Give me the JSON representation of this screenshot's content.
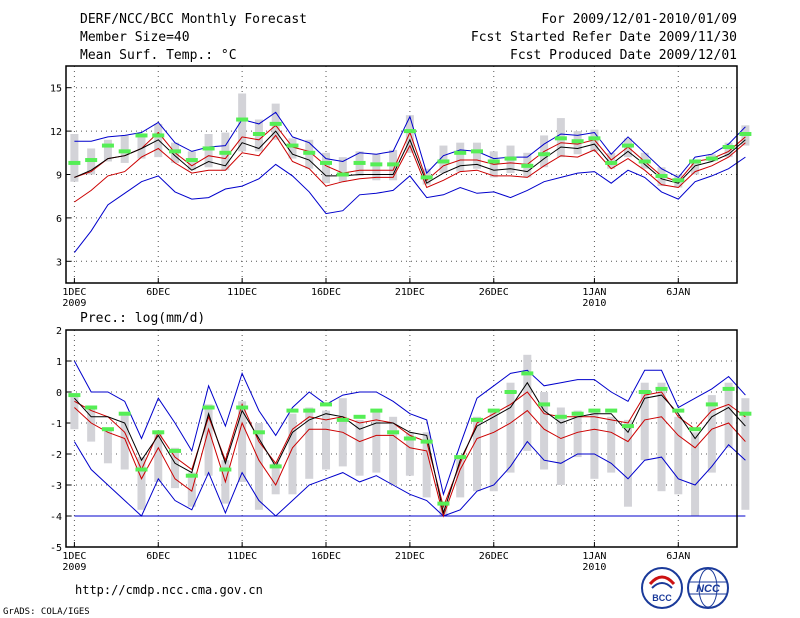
{
  "header": {
    "title": "DERF/NCC/BCC Monthly Forecast",
    "member": "Member Size=40",
    "variable": "Mean Surf. Temp.: °C",
    "period": "For 2009/12/01-2010/01/09",
    "start": "Fcst Started Refer Date 2009/11/30",
    "produced": "Fcst Produced Date 2009/12/01"
  },
  "footer": {
    "url": "http://cmdp.ncc.cma.gov.cn",
    "grads": "GrADS: COLA/IGES",
    "logo1": "BCC",
    "logo2": "NCC"
  },
  "colors": {
    "bar": "#d3d3d8",
    "marker": "#55ee55",
    "spread": "#0000cc",
    "iqr": "#cc0000",
    "mean": "#000000"
  },
  "chart_data": [
    {
      "type": "line",
      "title": "Mean Surf. Temp.: °C",
      "ylim": [
        1.5,
        16.5
      ],
      "yticks": [
        "3",
        "6",
        "9",
        "12",
        "15"
      ],
      "ytick_values": [
        3,
        6,
        9,
        12,
        15
      ],
      "xticks": [
        "1DEC",
        "6DEC",
        "11DEC",
        "16DEC",
        "21DEC",
        "26DEC",
        "1JAN",
        "6JAN"
      ],
      "xtick_days": [
        1,
        6,
        11,
        16,
        21,
        26,
        32,
        37
      ],
      "year_labels": [
        {
          "day": 1,
          "label": "2009"
        },
        {
          "day": 32,
          "label": "2010"
        }
      ],
      "x_range": [
        0.5,
        40.5
      ],
      "series": [
        {
          "name": "max",
          "values": [
            11.3,
            11.3,
            11.6,
            11.7,
            11.9,
            12.6,
            11.2,
            10.6,
            10.9,
            11.0,
            12.8,
            12.5,
            13.3,
            11.6,
            11.2,
            10.1,
            9.9,
            10.5,
            10.4,
            10.6,
            13.0,
            9.1,
            10.3,
            10.7,
            10.6,
            10.1,
            10.2,
            10.2,
            11.1,
            11.8,
            11.7,
            11.9,
            10.4,
            11.6,
            10.5,
            9.4,
            8.8,
            10.2,
            10.4,
            11.1,
            12.3
          ]
        },
        {
          "name": "q75",
          "values": [
            8.8,
            9.2,
            10.1,
            10.3,
            10.8,
            11.9,
            10.5,
            9.6,
            10.3,
            10.1,
            11.6,
            11.4,
            12.4,
            10.9,
            10.6,
            9.6,
            9.1,
            9.3,
            9.3,
            9.3,
            11.9,
            8.6,
            9.6,
            10.0,
            10.0,
            9.7,
            9.8,
            9.7,
            10.6,
            11.2,
            11.1,
            11.4,
            10.0,
            10.9,
            9.9,
            8.9,
            8.5,
            9.9,
            10.1,
            10.6,
            11.6
          ]
        },
        {
          "name": "mean",
          "values": [
            8.8,
            9.3,
            10.1,
            10.3,
            10.8,
            11.4,
            10.3,
            9.3,
            9.9,
            9.6,
            11.2,
            10.8,
            12.0,
            10.4,
            10.0,
            8.9,
            8.9,
            9.0,
            9.0,
            9.0,
            11.4,
            8.4,
            9.1,
            9.6,
            9.7,
            9.3,
            9.4,
            9.2,
            10.1,
            10.9,
            10.8,
            11.1,
            9.7,
            10.6,
            9.7,
            8.7,
            8.4,
            9.6,
            9.9,
            10.4,
            11.4
          ]
        },
        {
          "name": "q25",
          "values": [
            7.1,
            7.9,
            8.9,
            9.2,
            10.2,
            10.8,
            9.8,
            9.1,
            9.3,
            9.3,
            10.5,
            10.3,
            11.7,
            9.9,
            9.4,
            8.2,
            8.5,
            8.7,
            8.8,
            8.8,
            11.0,
            8.1,
            8.6,
            9.2,
            9.3,
            8.9,
            8.9,
            8.8,
            9.6,
            10.3,
            10.2,
            10.7,
            9.4,
            10.1,
            9.3,
            8.3,
            8.1,
            9.2,
            9.6,
            10.2,
            11.2
          ]
        },
        {
          "name": "min",
          "values": [
            3.6,
            5.1,
            6.9,
            7.7,
            8.5,
            8.9,
            7.8,
            7.3,
            7.4,
            8.0,
            8.2,
            8.7,
            9.7,
            8.9,
            7.8,
            6.3,
            6.5,
            7.6,
            7.7,
            7.9,
            8.9,
            7.4,
            7.6,
            8.1,
            7.7,
            7.8,
            7.4,
            7.9,
            8.5,
            8.8,
            9.1,
            9.2,
            8.4,
            9.3,
            8.8,
            7.8,
            7.3,
            8.5,
            8.9,
            9.4,
            10.2
          ]
        },
        {
          "name": "member_box_top",
          "values": [
            11.8,
            10.8,
            11.4,
            11.7,
            11.6,
            12.5,
            11.2,
            10.6,
            11.8,
            11.9,
            14.6,
            12.8,
            13.9,
            11.5,
            11.4,
            10.5,
            10.2,
            10.6,
            10.4,
            10.7,
            13.1,
            9.4,
            11.0,
            11.2,
            11.2,
            10.6,
            11.0,
            10.5,
            11.7,
            12.9,
            12.0,
            12.1,
            10.5,
            11.5,
            10.5,
            9.5,
            9.0,
            10.0,
            10.4,
            11.2,
            12.4
          ]
        },
        {
          "name": "member_box_bottom",
          "values": [
            8.5,
            9.0,
            9.9,
            9.8,
            10.1,
            10.2,
            9.8,
            9.3,
            9.5,
            9.3,
            10.6,
            10.6,
            11.4,
            10.1,
            9.4,
            8.4,
            8.5,
            8.9,
            8.6,
            8.6,
            10.5,
            8.3,
            9.1,
            9.2,
            9.4,
            8.8,
            9.1,
            8.8,
            9.5,
            10.2,
            10.4,
            10.6,
            9.4,
            10.2,
            9.4,
            8.2,
            8.1,
            9.0,
            9.9,
            10.2,
            11.0
          ]
        },
        {
          "name": "median_marker",
          "values": [
            9.8,
            10.0,
            11.0,
            10.6,
            11.7,
            11.7,
            10.6,
            10.0,
            10.8,
            10.5,
            12.8,
            11.8,
            12.5,
            11.0,
            10.5,
            9.8,
            9.0,
            9.8,
            9.7,
            9.7,
            12.0,
            8.8,
            9.9,
            10.5,
            10.6,
            9.9,
            10.1,
            9.6,
            10.4,
            11.5,
            11.3,
            11.5,
            9.8,
            11.0,
            9.9,
            8.9,
            8.6,
            9.9,
            10.1,
            10.9,
            11.8
          ]
        }
      ]
    },
    {
      "type": "line",
      "title": "Prec.: log(mm/d)",
      "ylim": [
        -5,
        2
      ],
      "yticks": [
        "-5",
        "-4",
        "-3",
        "-2",
        "-1",
        "0",
        "1",
        "2"
      ],
      "ytick_values": [
        -5,
        -4,
        -3,
        -2,
        -1,
        0,
        1,
        2
      ],
      "xticks": [
        "1DEC",
        "6DEC",
        "11DEC",
        "16DEC",
        "21DEC",
        "26DEC",
        "1JAN",
        "6JAN"
      ],
      "xtick_days": [
        1,
        6,
        11,
        16,
        21,
        26,
        32,
        37
      ],
      "year_labels": [
        {
          "day": 1,
          "label": "2009"
        },
        {
          "day": 32,
          "label": "2010"
        }
      ],
      "x_range": [
        0.5,
        40.5
      ],
      "baseline": -4,
      "series": [
        {
          "name": "max",
          "values": [
            1.0,
            0.0,
            0.0,
            -0.3,
            -1.5,
            -0.2,
            -1.0,
            -1.9,
            0.2,
            -1.1,
            0.6,
            -0.6,
            -1.4,
            -0.5,
            0.0,
            -0.4,
            -0.1,
            0.0,
            0.0,
            -0.3,
            -0.7,
            -0.9,
            -3.3,
            -1.7,
            -0.2,
            0.2,
            0.6,
            0.7,
            0.2,
            0.3,
            0.4,
            0.4,
            0.0,
            -0.3,
            0.7,
            0.7,
            -0.5,
            -0.2,
            0.1,
            0.5,
            -0.1
          ]
        },
        {
          "name": "q75",
          "values": [
            -0.3,
            -0.6,
            -0.8,
            -1.3,
            -2.5,
            -1.3,
            -2.1,
            -2.5,
            -0.8,
            -2.2,
            -0.4,
            -1.6,
            -2.3,
            -1.2,
            -0.8,
            -0.9,
            -0.8,
            -1.0,
            -0.9,
            -1.0,
            -1.4,
            -1.6,
            -3.7,
            -2.3,
            -1.0,
            -0.7,
            -0.4,
            0.0,
            -0.7,
            -0.8,
            -0.8,
            -0.8,
            -0.9,
            -1.0,
            -0.1,
            0.0,
            -0.8,
            -1.2,
            -0.6,
            -0.4,
            -0.8
          ]
        },
        {
          "name": "mean",
          "values": [
            -0.2,
            -0.8,
            -0.8,
            -1.0,
            -2.2,
            -1.4,
            -2.3,
            -2.6,
            -0.7,
            -2.3,
            -0.6,
            -1.5,
            -2.4,
            -1.3,
            -0.9,
            -0.7,
            -0.8,
            -1.2,
            -1.0,
            -1.0,
            -1.3,
            -1.4,
            -3.9,
            -2.2,
            -1.1,
            -0.8,
            -0.5,
            0.3,
            -0.6,
            -1.0,
            -0.8,
            -0.7,
            -0.7,
            -1.3,
            -0.2,
            -0.1,
            -0.7,
            -1.5,
            -0.8,
            -0.5,
            -1.1
          ]
        },
        {
          "name": "q25",
          "values": [
            -0.5,
            -1.0,
            -1.3,
            -1.5,
            -2.8,
            -1.8,
            -2.8,
            -3.2,
            -1.2,
            -2.9,
            -1.0,
            -2.2,
            -3.0,
            -1.8,
            -1.2,
            -1.2,
            -1.3,
            -1.6,
            -1.4,
            -1.4,
            -1.8,
            -1.9,
            -4.0,
            -2.5,
            -1.5,
            -1.3,
            -1.0,
            -0.6,
            -1.2,
            -1.5,
            -1.3,
            -1.2,
            -1.3,
            -1.6,
            -0.9,
            -0.8,
            -1.4,
            -1.8,
            -1.2,
            -1.0,
            -1.6
          ]
        },
        {
          "name": "min",
          "values": [
            -1.6,
            -2.5,
            -3.0,
            -3.5,
            -4.0,
            -2.8,
            -3.5,
            -3.8,
            -2.6,
            -3.9,
            -2.6,
            -3.5,
            -4.0,
            -3.5,
            -3.0,
            -2.8,
            -2.6,
            -2.9,
            -2.7,
            -3.0,
            -3.3,
            -3.5,
            -4.0,
            -3.8,
            -3.2,
            -3.0,
            -2.4,
            -1.6,
            -2.2,
            -2.3,
            -2.0,
            -2.0,
            -2.3,
            -2.8,
            -2.2,
            -2.1,
            -2.8,
            -3.0,
            -2.4,
            -1.7,
            -2.2
          ]
        },
        {
          "name": "member_box_top",
          "values": [
            -0.1,
            -0.5,
            -1.2,
            -0.7,
            -2.1,
            -1.3,
            -1.8,
            -2.6,
            -0.4,
            -2.2,
            -0.3,
            -1.0,
            -2.3,
            -0.7,
            -0.5,
            -0.6,
            -0.2,
            -0.9,
            -0.6,
            -0.8,
            -1.3,
            -1.3,
            -3.6,
            -2.1,
            -0.8,
            -0.6,
            0.3,
            1.2,
            0.0,
            -0.5,
            -0.6,
            -0.6,
            -0.8,
            -0.9,
            0.3,
            0.3,
            -0.8,
            -1.3,
            -0.1,
            0.3,
            -0.2
          ]
        },
        {
          "name": "member_box_bottom",
          "values": [
            -1.2,
            -1.6,
            -2.3,
            -2.5,
            -3.8,
            -2.9,
            -3.1,
            -3.7,
            -2.7,
            -3.6,
            -2.9,
            -3.8,
            -3.3,
            -3.3,
            -2.8,
            -2.5,
            -2.4,
            -2.7,
            -2.6,
            -3.0,
            -2.7,
            -3.4,
            -4.0,
            -3.4,
            -3.2,
            -3.2,
            -2.6,
            -1.9,
            -2.5,
            -3.0,
            -2.1,
            -2.8,
            -2.6,
            -3.7,
            -2.2,
            -3.2,
            -3.3,
            -4.0,
            -2.6,
            -1.8,
            -3.8
          ]
        },
        {
          "name": "median_marker",
          "values": [
            -0.1,
            -0.5,
            -1.2,
            -0.7,
            -2.5,
            -1.3,
            -1.9,
            -2.7,
            -0.5,
            -2.5,
            -0.5,
            -1.3,
            -2.4,
            -0.6,
            -0.6,
            -0.4,
            -0.9,
            -0.8,
            -0.6,
            -1.3,
            -1.5,
            -1.6,
            -3.6,
            -2.1,
            -0.9,
            -0.6,
            0.0,
            0.6,
            -0.4,
            -0.8,
            -0.7,
            -0.6,
            -0.6,
            -1.1,
            0.0,
            0.1,
            -0.6,
            -1.2,
            -0.4,
            0.1,
            -0.7
          ]
        }
      ]
    }
  ]
}
